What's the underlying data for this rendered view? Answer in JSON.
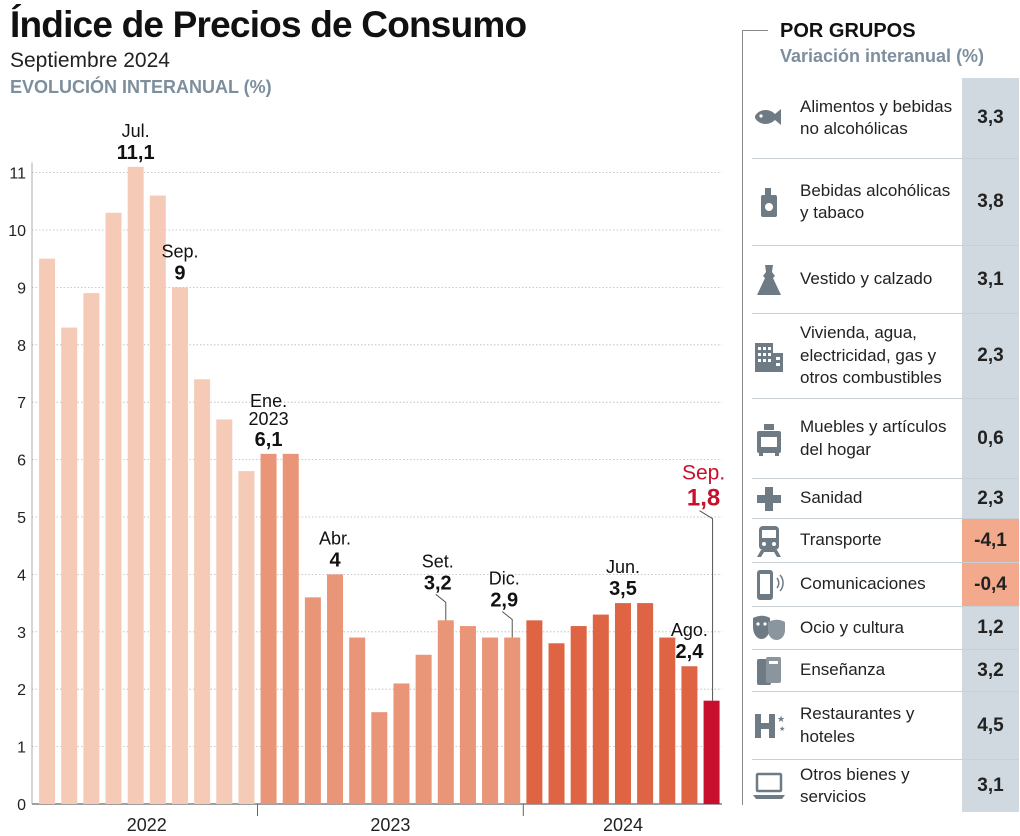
{
  "header": {
    "title": "Índice de Precios de Consumo",
    "subtitle": "Septiembre 2024",
    "section_label": "EVOLUCIÓN INTERANUAL (%)"
  },
  "chart_data": {
    "type": "bar",
    "title": "EVOLUCIÓN INTERANUAL (%)",
    "xlabel": "",
    "ylabel": "",
    "ylim": [
      0,
      11
    ],
    "yticks": [
      "0",
      "1",
      "2",
      "3",
      "4",
      "5",
      "6",
      "7",
      "8",
      "9",
      "10",
      "11"
    ],
    "grid": true,
    "year_labels": [
      "2022",
      "2023",
      "2024"
    ],
    "values": [
      9.5,
      8.3,
      8.9,
      10.3,
      11.1,
      10.6,
      9.0,
      7.4,
      6.7,
      5.8,
      6.1,
      6.1,
      3.6,
      4.0,
      2.9,
      1.6,
      2.1,
      2.6,
      3.2,
      3.1,
      2.9,
      2.9,
      3.2,
      2.8,
      3.1,
      3.3,
      3.5,
      3.5,
      2.9,
      2.4,
      1.8
    ],
    "annotations": [
      {
        "index": 4,
        "month": "Jul.",
        "value": "11,1"
      },
      {
        "index": 6,
        "month": "Sep.",
        "value": "9"
      },
      {
        "index": 10,
        "month": "Ene.",
        "month2": "2023",
        "value": "6,1"
      },
      {
        "index": 13,
        "month": "Abr.",
        "value": "4"
      },
      {
        "index": 18,
        "month": "Set.",
        "value": "3,2",
        "leader": true
      },
      {
        "index": 21,
        "month": "Dic.",
        "value": "2,9",
        "leader": true
      },
      {
        "index": 26,
        "month": "Jun.",
        "value": "3,5"
      },
      {
        "index": 29,
        "month": "Ago.",
        "value": "2,4"
      },
      {
        "index": 30,
        "month": "Sep.",
        "value": "1,8",
        "highlight": true,
        "leader": true
      }
    ],
    "colors": {
      "2022": "#f5cbb8",
      "2023": "#e99578",
      "2024": "#df6444",
      "latest": "#c8102e",
      "grid": "#b8b8b8",
      "highlight_text": "#c8102e"
    }
  },
  "groups_panel": {
    "title": "POR GRUPOS",
    "subtitle": "Variación interanual (%)",
    "items": [
      {
        "label": "Alimentos y bebidas no alcohólicas",
        "value": "3,3",
        "icon": "fish-icon"
      },
      {
        "label": "Bebidas alcohólicas y tabaco",
        "value": "3,8",
        "icon": "lighter-icon"
      },
      {
        "label": "Vestido y calzado",
        "value": "3,1",
        "icon": "dress-icon"
      },
      {
        "label": "Vivienda, agua, electricidad, gas y otros combustibles",
        "value": "2,3",
        "icon": "building-icon"
      },
      {
        "label": "Muebles y artículos del hogar",
        "value": "0,6",
        "icon": "stove-icon"
      },
      {
        "label": "Sanidad",
        "value": "2,3",
        "icon": "cross-icon"
      },
      {
        "label": "Transporte",
        "value": "-4,1",
        "icon": "train-icon",
        "negative": true
      },
      {
        "label": "Comunicaciones",
        "value": "-0,4",
        "icon": "phone-icon",
        "negative": true
      },
      {
        "label": "Ocio y cultura",
        "value": "1,2",
        "icon": "masks-icon"
      },
      {
        "label": "Enseñanza",
        "value": "3,2",
        "icon": "books-icon"
      },
      {
        "label": "Restaurantes y hoteles",
        "value": "4,5",
        "icon": "hotel-icon"
      },
      {
        "label": "Otros bienes y servicios",
        "value": "3,1",
        "icon": "laptop-icon"
      }
    ]
  }
}
